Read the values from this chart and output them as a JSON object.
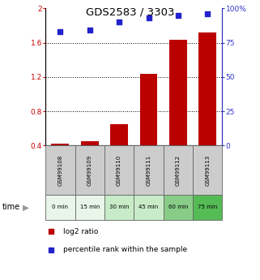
{
  "title": "GDS2583 / 3303",
  "samples": [
    "GSM99108",
    "GSM99109",
    "GSM99110",
    "GSM99111",
    "GSM99112",
    "GSM99113"
  ],
  "time_labels": [
    "0 min",
    "15 min",
    "30 min",
    "45 min",
    "60 min",
    "75 min"
  ],
  "log2_ratio": [
    0.42,
    0.45,
    0.65,
    1.24,
    1.63,
    1.72
  ],
  "percentile_rank": [
    83,
    84,
    90,
    93,
    95,
    96
  ],
  "bar_color": "#bb0000",
  "dot_color": "#2222cc",
  "ylim_left": [
    0.4,
    2.0
  ],
  "ylim_right": [
    0,
    100
  ],
  "yticks_left": [
    0.4,
    0.8,
    1.2,
    1.6,
    2.0
  ],
  "yticks_right": [
    0,
    25,
    50,
    75,
    100
  ],
  "ytick_labels_left": [
    "0.4",
    "0.8",
    "1.2",
    "1.6",
    "2"
  ],
  "ytick_labels_right": [
    "0",
    "25",
    "50",
    "75",
    "100%"
  ],
  "hlines": [
    0.8,
    1.2,
    1.6
  ],
  "time_colors": [
    "#e8f5e8",
    "#e8f5e8",
    "#c8ecc8",
    "#c8ecc8",
    "#88cc88",
    "#55bb55"
  ],
  "gsm_box_color": "#cccccc",
  "left_axis_color": "#cc0000",
  "right_axis_color": "#3333cc",
  "legend_log2": "log2 ratio",
  "legend_pct": "percentile rank within the sample",
  "bar_width": 0.6
}
